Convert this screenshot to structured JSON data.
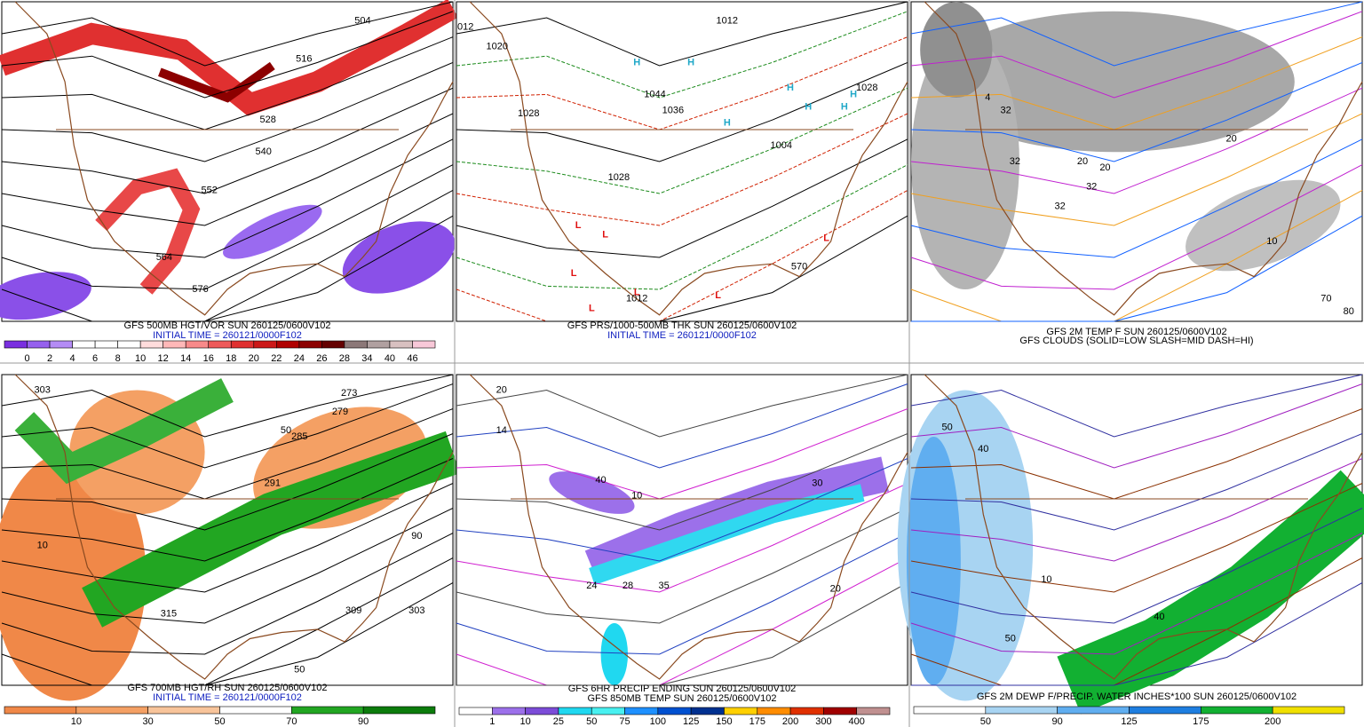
{
  "panels": [
    {
      "captions": [
        "GFS 500MB HGT/VOR SUN 260125/0600V102",
        "INITIAL TIME = 260121/0000F102"
      ],
      "contour_labels": [
        "504",
        "516",
        "528",
        "540",
        "552",
        "564",
        "576"
      ],
      "legend": {
        "labels": [
          "0",
          "2",
          "4",
          "6",
          "8",
          "10",
          "12",
          "14",
          "16",
          "18",
          "20",
          "22",
          "24",
          "26",
          "28",
          "34",
          "40",
          "46"
        ],
        "colors": [
          "#7a2fe0",
          "#9660ee",
          "#b48cf5",
          "#ffffff",
          "#ffffff",
          "#ffffff",
          "#ffdcdc",
          "#ffb8b8",
          "#f88a8a",
          "#ee5a5a",
          "#e03030",
          "#cc1818",
          "#b00000",
          "#8c0000",
          "#640000",
          "#8c7878",
          "#b0a0a0",
          "#d8c0c0",
          "#f8c8d8"
        ]
      }
    },
    {
      "captions": [
        "GFS PRS/1000-500MB THK SUN 260125/0600V102",
        "INITIAL TIME = 260121/0000F102"
      ],
      "contour_labels": [
        "012",
        "1020",
        "1028",
        "1036",
        "1044",
        "1004",
        "1012",
        "1012",
        "1028",
        "1028",
        "570"
      ],
      "highs": [
        "H",
        "H",
        "H",
        "H",
        "H",
        "H",
        "H"
      ],
      "lows": [
        "L",
        "L",
        "L",
        "L",
        "L",
        "L",
        "L"
      ]
    },
    {
      "captions": [
        "GFS 2M TEMP F SUN 260125/0600V102",
        "GFS CLOUDS (SOLID=LOW SLASH=MID DASH=HI)"
      ],
      "contour_labels": [
        "4",
        "32",
        "32",
        "32",
        "20",
        "20",
        "32",
        "20",
        "10",
        "70",
        "80"
      ]
    },
    {
      "captions": [
        "GFS 700MB HGT/RH SUN 260125/0600V102",
        "INITIAL TIME = 260121/0000F102"
      ],
      "contour_labels": [
        "303",
        "273",
        "279",
        "285",
        "291",
        "50",
        "90",
        "10",
        "303",
        "315",
        "309",
        "50"
      ],
      "legend": {
        "labels": [
          "10",
          "30",
          "50",
          "70",
          "90"
        ],
        "colors": [
          "#f08848",
          "#f4a064",
          "#f8c49a",
          "#ffffff",
          "#22a622",
          "#0c7c0c"
        ]
      }
    },
    {
      "captions": [
        "GFS 6HR PRECIP ENDING SUN 260125/0600V102",
        "GFS 850MB TEMP SUN 260125/0600V102"
      ],
      "contour_labels": [
        "20",
        "14",
        "24",
        "28",
        "35",
        "20",
        "40",
        "10",
        "30"
      ],
      "legend": {
        "labels": [
          "1",
          "10",
          "25",
          "50",
          "75",
          "100",
          "125",
          "150",
          "175",
          "200",
          "300",
          "400"
        ],
        "colors": [
          "#ffffff",
          "#9c70ea",
          "#7c4cd8",
          "#20d8f0",
          "#48f0f0",
          "#1e90ff",
          "#0050d0",
          "#003090",
          "#ffd000",
          "#ff8c00",
          "#e03000",
          "#a00000",
          "#c09090"
        ]
      }
    },
    {
      "captions": [
        "GFS 2M DEWP F/PRECIP. WATER INCHES*100 SUN 260125/0600V102"
      ],
      "contour_labels": [
        "50",
        "40",
        "10",
        "50",
        "40"
      ],
      "legend": {
        "labels": [
          "50",
          "90",
          "125",
          "175",
          "200"
        ],
        "colors": [
          "#ffffff",
          "#a8d4f2",
          "#60aef0",
          "#1e7ee0",
          "#12b032",
          "#f0e000"
        ]
      }
    }
  ]
}
